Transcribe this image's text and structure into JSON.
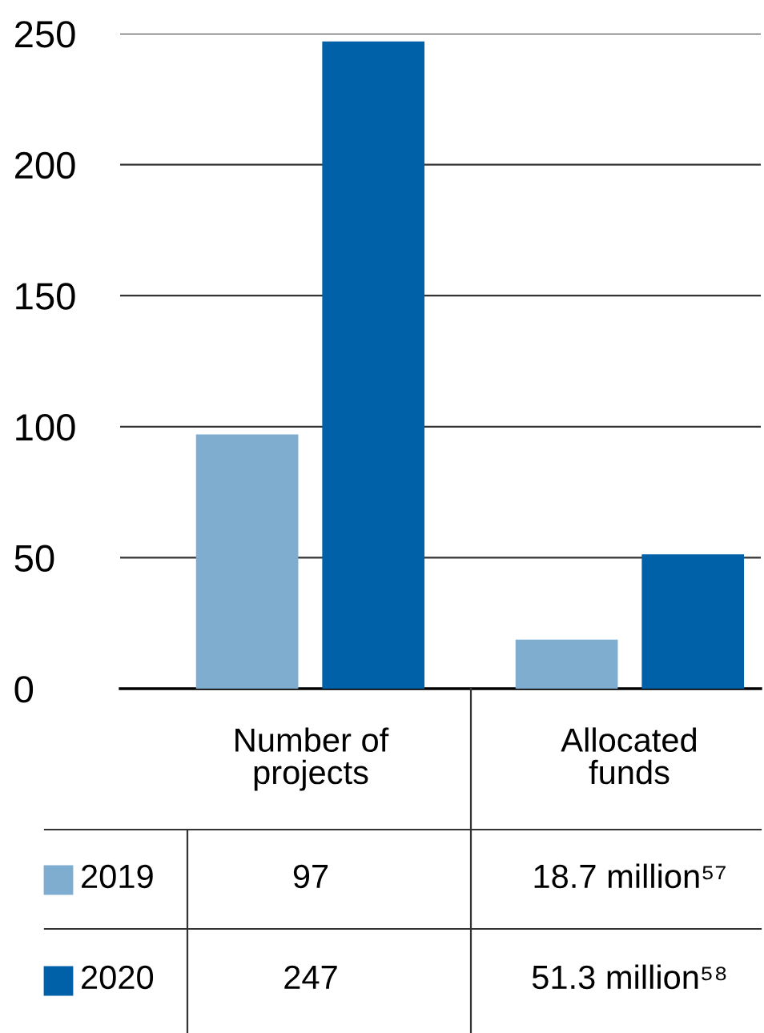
{
  "chart_data": {
    "type": "bar",
    "categories": [
      "Number of\nprojects",
      "Allocated\nfunds"
    ],
    "series": [
      {
        "name": "2019",
        "color": "#7fadd0",
        "values": [
          97,
          18.7
        ],
        "value_labels": [
          "97",
          "18.7 million⁵⁷"
        ]
      },
      {
        "name": "2020",
        "color": "#0060a8",
        "values": [
          247,
          51.3
        ],
        "value_labels": [
          "247",
          "51.3 million⁵⁸"
        ]
      }
    ],
    "ylim": [
      0,
      250
    ],
    "yticks": [
      0,
      50,
      100,
      150,
      200,
      250
    ],
    "grid": "y",
    "legend": "bottom left"
  }
}
